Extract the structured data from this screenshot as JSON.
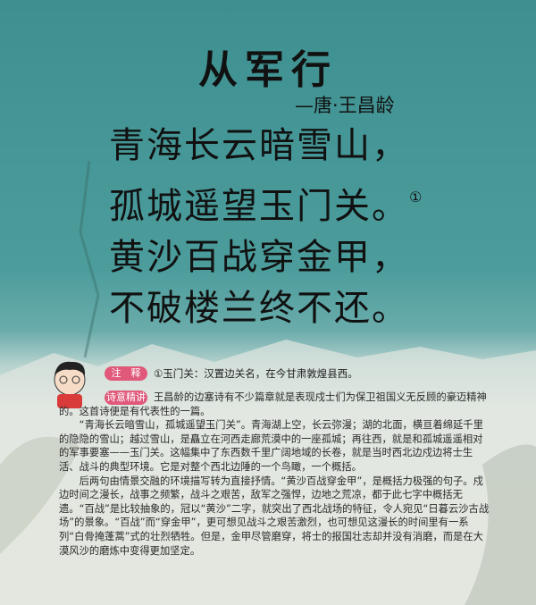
{
  "title": "从军行",
  "author": "—唐·王昌龄",
  "poem": {
    "lines": [
      "青海长云暗雪山，",
      "孤城遥望玉门关。",
      "黄沙百战穿金甲，",
      "不破楼兰终不还。"
    ],
    "footnote_marker": "①"
  },
  "notes": {
    "label": "注　释",
    "items": [
      "①玉门关：汉置边关名，在今甘肃敦煌县西。"
    ]
  },
  "commentary": {
    "label": "诗意精讲",
    "paragraphs": [
      "王昌龄的边塞诗有不少篇章就是表现戍士们为保卫祖国义无反顾的豪迈精神的。这首诗便是有代表性的一篇。",
      "“青海长云暗雪山，孤城遥望玉门关”。青海湖上空，长云弥漫；湖的北面，横亘着绵延千里的隐隐的雪山；越过雪山，是矗立在河西走廊荒漠中的一座孤城；再往西，就是和孤城遥遥相对的军事要塞——玉门关。这幅集中了东西数千里广阔地域的长卷，就是当时西北边戍边将士生活、战斗的典型环境。它是对整个西北边陲的一个鸟瞰，一个概括。",
      "后两句由情景交融的环境描写转为直接抒情。“黄沙百战穿金甲”，是概括力极强的句子。戍边时间之漫长，战事之频繁，战斗之艰苦，敌军之强悍，边地之荒凉，都于此七字中概括无遗。“百战”是比较抽象的，冠以“黄沙”二字，就突出了西北战场的特征，令人宛见“日暮云沙古战场”的景象。“百战”而“穿金甲”，更可想见战斗之艰苦激烈，也可想见这漫长的时间里有一系列“白骨掩蓬蒿”式的壮烈牺牲。但是，金甲尽管磨穿，将士的报国壮志却并没有消磨，而是在大漠风沙的磨炼中变得更加坚定。"
    ]
  }
}
